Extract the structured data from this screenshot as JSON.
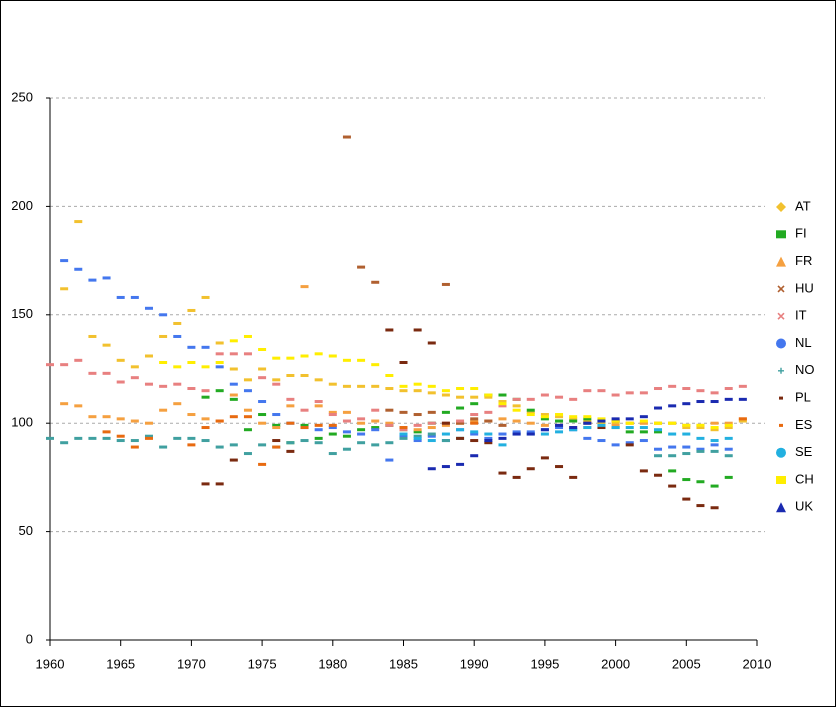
{
  "chart_data": {
    "type": "scatter",
    "xlim": [
      1960,
      2010
    ],
    "xticks": [
      1960,
      1965,
      1970,
      1975,
      1980,
      1985,
      1990,
      1995,
      2000,
      2005,
      2010
    ],
    "ylim": [
      0,
      250
    ],
    "yticks": [
      0,
      50,
      100,
      150,
      200,
      250
    ],
    "grid": true,
    "legend": "right",
    "series": [
      {
        "name": "AT",
        "color": "#f2c12e",
        "marker": "diamond",
        "x": [
          1961,
          1962,
          1963,
          1964,
          1965,
          1966,
          1967,
          1968,
          1969,
          1970,
          1971,
          1972,
          1973,
          1974,
          1975,
          1976,
          1977,
          1978,
          1979,
          1980,
          1981,
          1982,
          1983,
          1984,
          1985,
          1986,
          1987,
          1988,
          1989,
          1990,
          1991,
          1992,
          1993,
          1994,
          1995,
          1996,
          1997,
          1998,
          1999,
          2000,
          2001,
          2002,
          2003,
          2004,
          2005,
          2006,
          2007,
          2008,
          2009
        ],
        "values": [
          162,
          193,
          140,
          136,
          129,
          126,
          131,
          140,
          146,
          152,
          158,
          137,
          125,
          120,
          125,
          120,
          122,
          122,
          120,
          118,
          117,
          117,
          117,
          116,
          115,
          115,
          114,
          113,
          112,
          112,
          112,
          110,
          108,
          105,
          104,
          103,
          102,
          101,
          100,
          100,
          100,
          100,
          100,
          100,
          98,
          98,
          97,
          98,
          101
        ]
      },
      {
        "name": "FI",
        "color": "#22aa22",
        "marker": "square",
        "x": [
          1971,
          1972,
          1973,
          1974,
          1975,
          1976,
          1977,
          1978,
          1979,
          1980,
          1981,
          1982,
          1983,
          1984,
          1985,
          1986,
          1987,
          1988,
          1989,
          1990,
          1991,
          1992,
          1993,
          1994,
          1995,
          1996,
          1997,
          1998,
          1999,
          2000,
          2001,
          2002,
          2003,
          2004,
          2005,
          2006,
          2007,
          2008
        ],
        "values": [
          112,
          115,
          111,
          97,
          104,
          99,
          91,
          99,
          93,
          95,
          94,
          97,
          98,
          99,
          97,
          96,
          100,
          105,
          107,
          109,
          113,
          113,
          111,
          106,
          102,
          101,
          101,
          102,
          101,
          98,
          96,
          96,
          96,
          78,
          74,
          73,
          71,
          75
        ]
      },
      {
        "name": "FR",
        "color": "#f5a040",
        "marker": "triangle",
        "x": [
          1961,
          1962,
          1963,
          1964,
          1965,
          1966,
          1967,
          1968,
          1969,
          1970,
          1971,
          1972,
          1973,
          1974,
          1975,
          1976,
          1977,
          1978,
          1979,
          1980,
          1981,
          1982,
          1983,
          1984,
          1985,
          1986,
          1987,
          1988,
          1989,
          1990,
          1991,
          1992,
          1993,
          1994,
          1995,
          1996,
          1997,
          1998,
          1999,
          2000,
          2001,
          2002,
          2003,
          2004,
          2005,
          2006,
          2007,
          2008,
          2009
        ],
        "values": [
          109,
          108,
          103,
          103,
          102,
          101,
          100,
          106,
          109,
          104,
          102,
          101,
          113,
          106,
          100,
          98,
          108,
          163,
          108,
          105,
          105,
          100,
          101,
          100,
          98,
          97,
          98,
          99,
          100,
          101,
          101,
          102,
          101,
          100,
          99,
          99,
          98,
          98,
          99,
          99,
          100,
          100,
          100,
          100,
          99,
          99,
          100,
          100,
          102
        ]
      },
      {
        "name": "HU",
        "color": "#b06030",
        "marker": "x",
        "x": [
          1981,
          1982,
          1983,
          1984,
          1985,
          1986,
          1987,
          1988,
          1989,
          1990,
          1991,
          1992
        ],
        "values": [
          232,
          172,
          165,
          106,
          105,
          104,
          105,
          164,
          100,
          102,
          101,
          99
        ]
      },
      {
        "name": "IT",
        "color": "#e88080",
        "marker": "x",
        "x": [
          1960,
          1961,
          1962,
          1963,
          1964,
          1965,
          1966,
          1967,
          1968,
          1969,
          1970,
          1971,
          1972,
          1973,
          1974,
          1975,
          1976,
          1977,
          1978,
          1979,
          1980,
          1981,
          1982,
          1983,
          1984,
          1985,
          1986,
          1987,
          1988,
          1989,
          1990,
          1991,
          1992,
          1993,
          1994,
          1995,
          1996,
          1997,
          1998,
          1999,
          2000,
          2001,
          2002,
          2003,
          2004,
          2005,
          2006,
          2007,
          2008,
          2009
        ],
        "values": [
          127,
          127,
          129,
          123,
          123,
          119,
          121,
          118,
          117,
          118,
          116,
          115,
          132,
          132,
          132,
          121,
          118,
          111,
          106,
          110,
          104,
          101,
          102,
          106,
          99,
          97,
          99,
          100,
          100,
          101,
          104,
          105,
          108,
          111,
          111,
          113,
          112,
          111,
          115,
          115,
          113,
          114,
          114,
          116,
          117,
          116,
          115,
          114,
          116,
          117
        ]
      },
      {
        "name": "NL",
        "color": "#4477ee",
        "marker": "circle",
        "x": [
          1961,
          1962,
          1963,
          1964,
          1965,
          1966,
          1967,
          1968,
          1969,
          1970,
          1971,
          1972,
          1973,
          1974,
          1975,
          1976,
          1977,
          1978,
          1979,
          1980,
          1981,
          1982,
          1983,
          1984,
          1985,
          1986,
          1987,
          1988,
          1989,
          1990,
          1991,
          1992,
          1993,
          1994,
          1995,
          1996,
          1997,
          1998,
          1999,
          2000,
          2001,
          2002,
          2003,
          2004,
          2005,
          2006,
          2007,
          2008
        ],
        "values": [
          175,
          171,
          166,
          167,
          158,
          158,
          153,
          150,
          140,
          135,
          135,
          126,
          118,
          115,
          110,
          104,
          100,
          98,
          97,
          98,
          96,
          95,
          97,
          83,
          94,
          92,
          94,
          92,
          97,
          95,
          93,
          95,
          96,
          96,
          97,
          98,
          97,
          93,
          92,
          90,
          91,
          92,
          88,
          89,
          89,
          88,
          90,
          88
        ]
      },
      {
        "name": "NO",
        "color": "#40a0a0",
        "marker": "plus",
        "x": [
          1960,
          1961,
          1962,
          1963,
          1964,
          1965,
          1966,
          1967,
          1968,
          1969,
          1970,
          1971,
          1972,
          1973,
          1974,
          1975,
          1976,
          1977,
          1978,
          1979,
          1980,
          1981,
          1982,
          1983,
          1984,
          1985,
          1986,
          1987,
          1988,
          1989,
          2003,
          2004,
          2005,
          2006,
          2007,
          2008
        ],
        "values": [
          93,
          91,
          93,
          93,
          93,
          92,
          92,
          94,
          89,
          93,
          93,
          92,
          89,
          90,
          86,
          90,
          89,
          91,
          92,
          91,
          86,
          88,
          91,
          90,
          91,
          93,
          94,
          95,
          92,
          93,
          85,
          85,
          86,
          87,
          87,
          85
        ]
      },
      {
        "name": "PL",
        "color": "#7a2a10",
        "marker": "dash",
        "x": [
          1971,
          1972,
          1973,
          1976,
          1977,
          1984,
          1985,
          1986,
          1987,
          1988,
          1989,
          1990,
          1991,
          1992,
          1993,
          1994,
          1995,
          1996,
          1997,
          1998,
          1999,
          2000,
          2001,
          2002,
          2003,
          2004,
          2005,
          2006,
          2007
        ],
        "values": [
          72,
          72,
          83,
          92,
          87,
          143,
          128,
          143,
          137,
          100,
          93,
          92,
          91,
          77,
          75,
          79,
          84,
          80,
          75,
          100,
          98,
          101,
          90,
          78,
          76,
          71,
          65,
          62,
          61
        ]
      },
      {
        "name": "ES",
        "color": "#e86a10",
        "marker": "dash",
        "x": [
          1964,
          1965,
          1966,
          1967,
          1970,
          1971,
          1972,
          1973,
          1974,
          1975,
          1976,
          1977,
          1978,
          1979,
          1980,
          1985,
          1990,
          2000,
          2009
        ],
        "values": [
          96,
          94,
          89,
          93,
          90,
          98,
          101,
          103,
          103,
          81,
          89,
          100,
          98,
          99,
          99,
          98,
          100,
          101,
          102
        ]
      },
      {
        "name": "SE",
        "color": "#22b0e0",
        "marker": "circle",
        "x": [
          1985,
          1986,
          1987,
          1988,
          1989,
          1990,
          1991,
          1992,
          1993,
          1994,
          1995,
          1996,
          1997,
          1998,
          1999,
          2000,
          2001,
          2002,
          2003,
          2004,
          2005,
          2006,
          2007,
          2008
        ],
        "values": [
          95,
          93,
          92,
          95,
          97,
          96,
          95,
          90,
          95,
          95,
          95,
          96,
          97,
          98,
          99,
          98,
          98,
          98,
          97,
          95,
          95,
          93,
          92,
          93
        ]
      },
      {
        "name": "CH",
        "color": "#ffee00",
        "marker": "square",
        "x": [
          1968,
          1969,
          1970,
          1971,
          1972,
          1973,
          1974,
          1975,
          1976,
          1977,
          1978,
          1979,
          1980,
          1981,
          1982,
          1983,
          1984,
          1985,
          1986,
          1987,
          1988,
          1989,
          1990,
          1991,
          1992,
          1993,
          1994,
          1995,
          1996,
          1997,
          1998,
          1999,
          2000,
          2001,
          2002,
          2003,
          2004,
          2005,
          2006,
          2007,
          2008
        ],
        "values": [
          128,
          126,
          128,
          126,
          128,
          138,
          140,
          134,
          130,
          130,
          131,
          132,
          131,
          129,
          129,
          127,
          122,
          117,
          118,
          117,
          115,
          116,
          116,
          113,
          109,
          106,
          104,
          103,
          104,
          103,
          103,
          102,
          101,
          100,
          101,
          100,
          100,
          99,
          99,
          98,
          99
        ]
      },
      {
        "name": "UK",
        "color": "#1a2ab0",
        "marker": "triangle",
        "x": [
          1987,
          1988,
          1989,
          1990,
          1991,
          1992,
          1993,
          1994,
          1995,
          1996,
          1997,
          1998,
          1999,
          2000,
          2001,
          2002,
          2003,
          2004,
          2005,
          2006,
          2007,
          2008,
          2009
        ],
        "values": [
          79,
          80,
          81,
          85,
          92,
          93,
          95,
          95,
          97,
          99,
          98,
          100,
          101,
          102,
          102,
          103,
          107,
          108,
          109,
          110,
          110,
          111,
          111
        ]
      }
    ]
  }
}
